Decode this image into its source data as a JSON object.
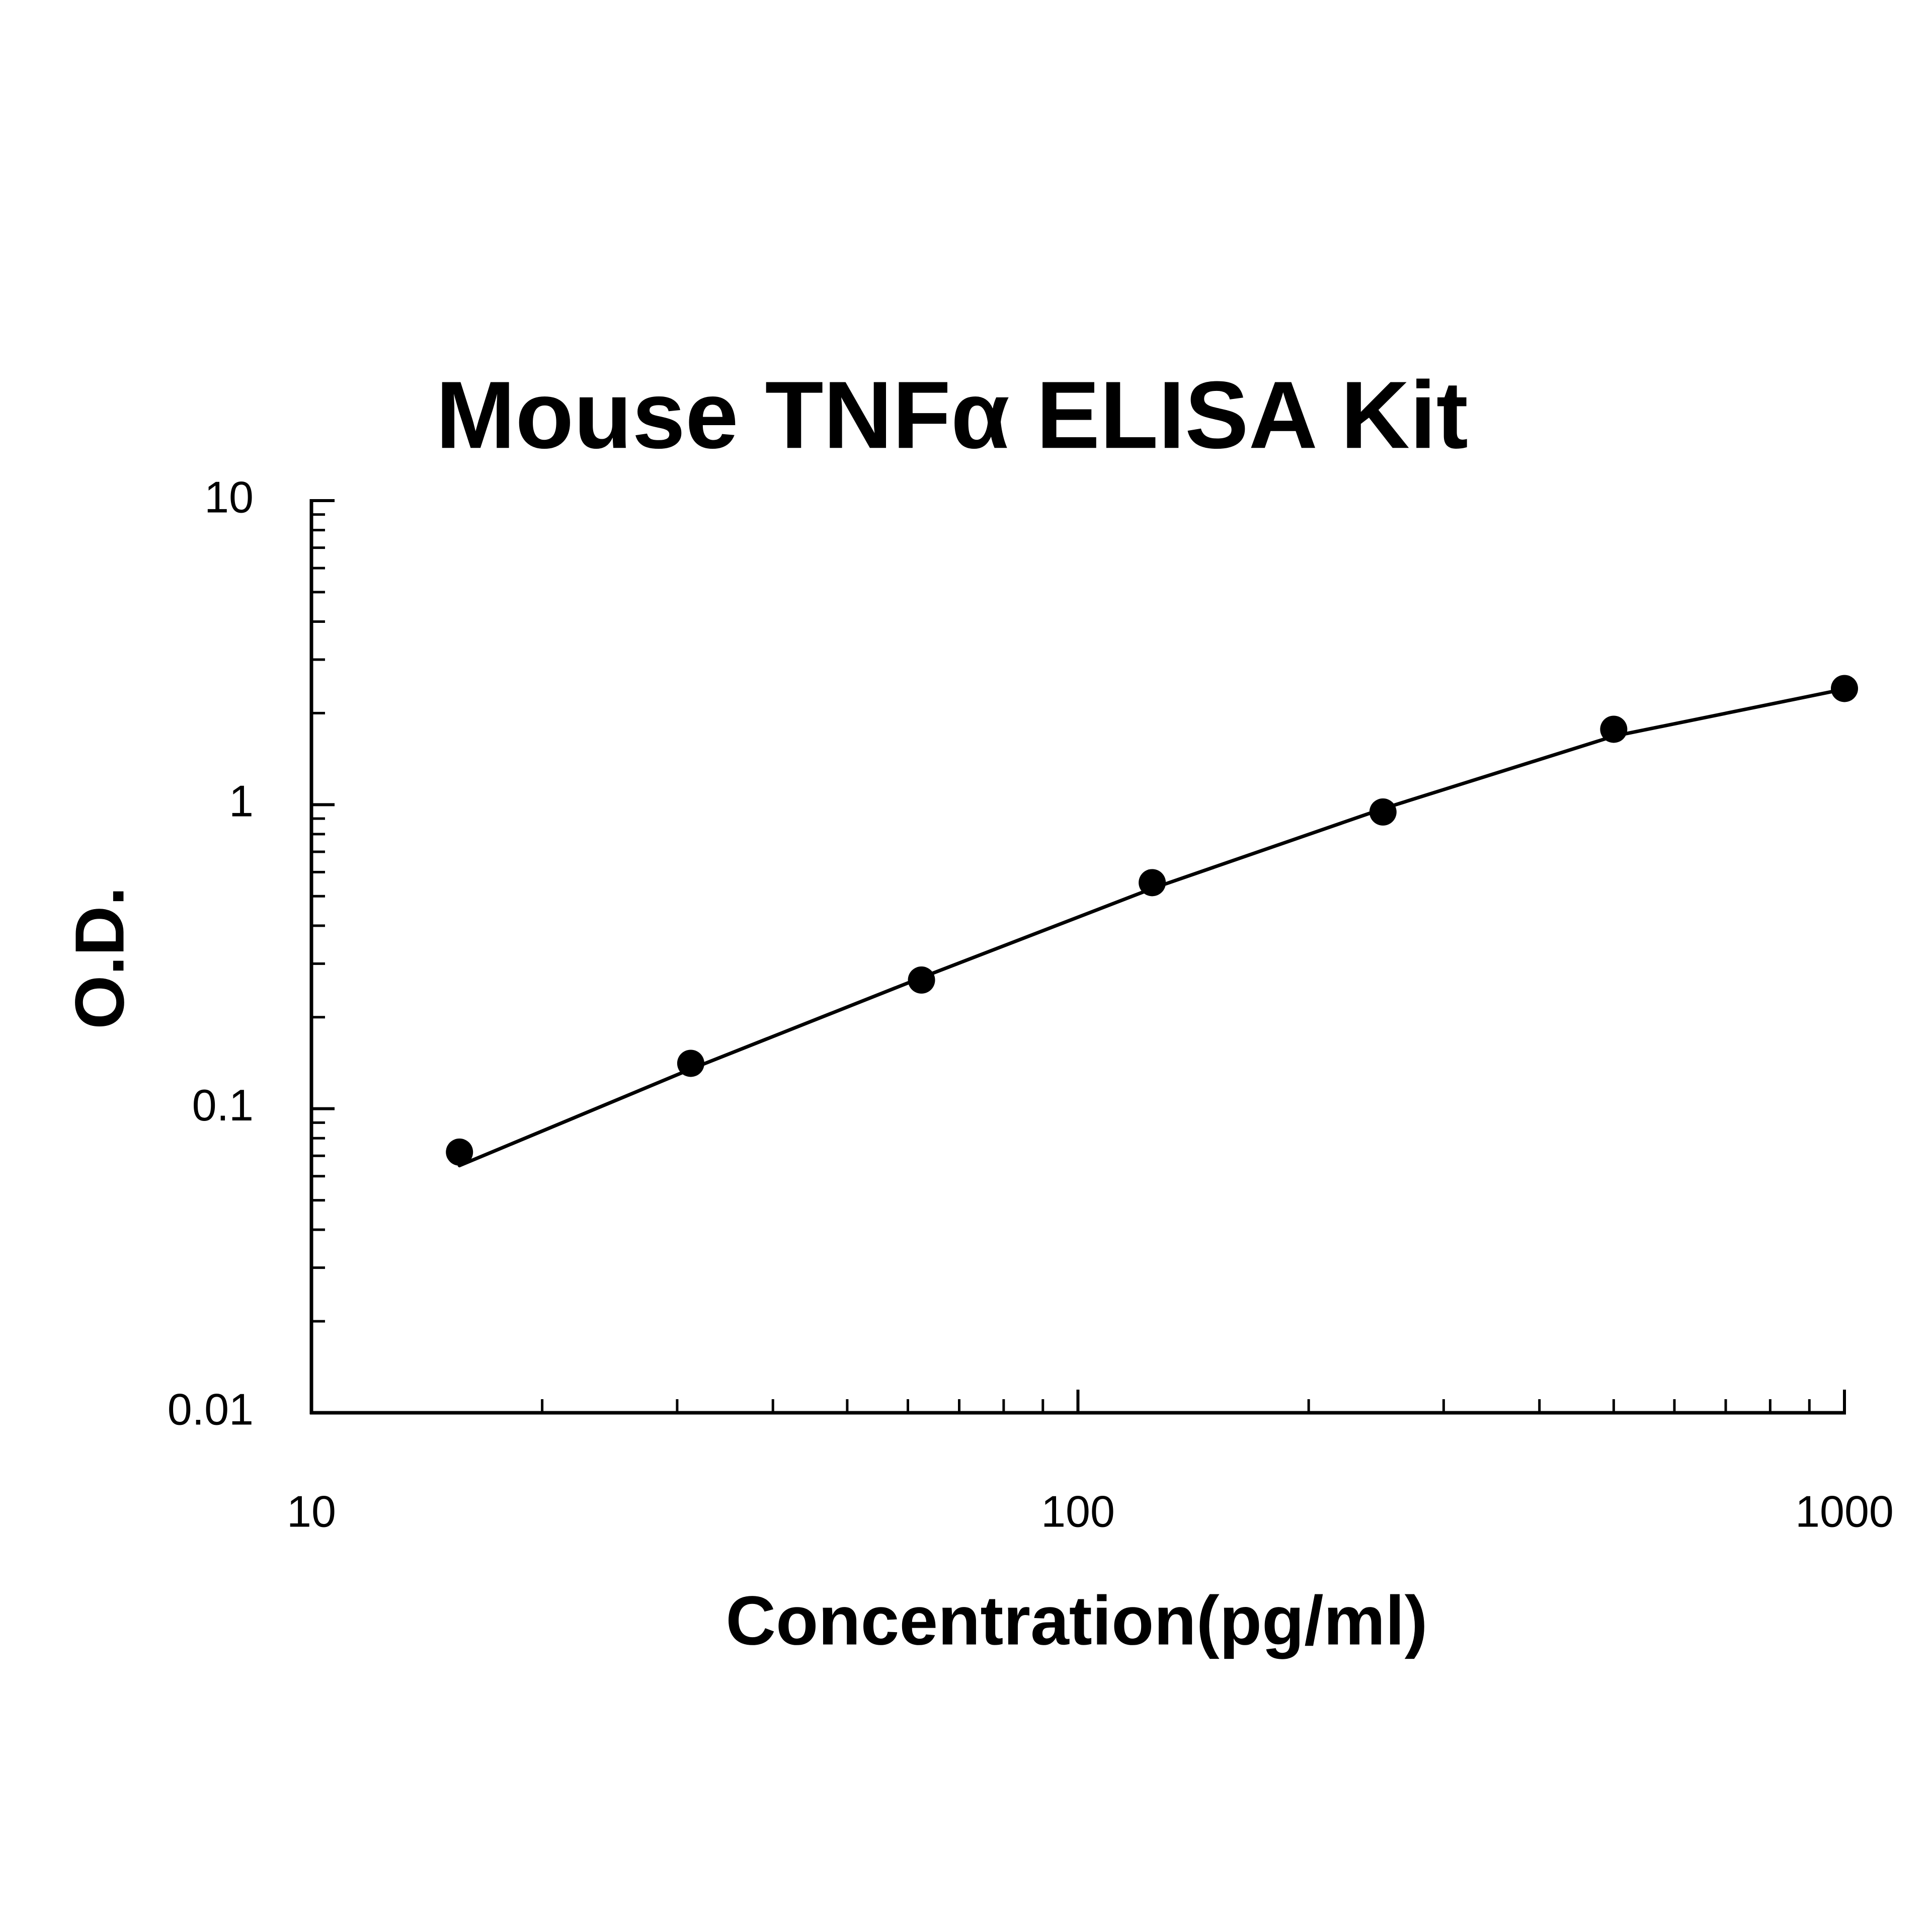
{
  "chart_data": {
    "type": "scatter",
    "title": "Mouse TNFα ELISA Kit",
    "x_label": "Concentration(pg/ml)",
    "y_label": "O.D.",
    "x": [
      15.6,
      31.25,
      62.5,
      125,
      250,
      500,
      1000
    ],
    "series": [
      {
        "type": "scatter",
        "color": "#000000",
        "values": [
          0.072,
          0.141,
          0.265,
          0.554,
          0.946,
          1.77,
          2.41
        ]
      },
      {
        "type": "line",
        "color": "#000000",
        "values": [
          0.065,
          0.135,
          0.27,
          0.53,
          0.97,
          1.68,
          2.4
        ]
      }
    ],
    "xscale": "log",
    "yscale": "log",
    "xlim": [
      10,
      1000
    ],
    "ylim": [
      0.01,
      10
    ],
    "xticks": [
      10,
      100,
      1000
    ],
    "yticks": [
      0.01,
      0.1,
      1,
      10
    ],
    "xminorticks": [
      20,
      30,
      40,
      50,
      60,
      70,
      80,
      90,
      200,
      300,
      400,
      500,
      600,
      700,
      800,
      900
    ],
    "yminorticks": [
      0.02,
      0.03,
      0.04,
      0.05,
      0.06,
      0.07,
      0.08,
      0.09,
      0.2,
      0.3,
      0.4,
      0.5,
      0.6,
      0.7,
      0.8,
      0.9,
      2,
      3,
      4,
      5,
      6,
      7,
      8,
      9
    ],
    "grid": false
  }
}
